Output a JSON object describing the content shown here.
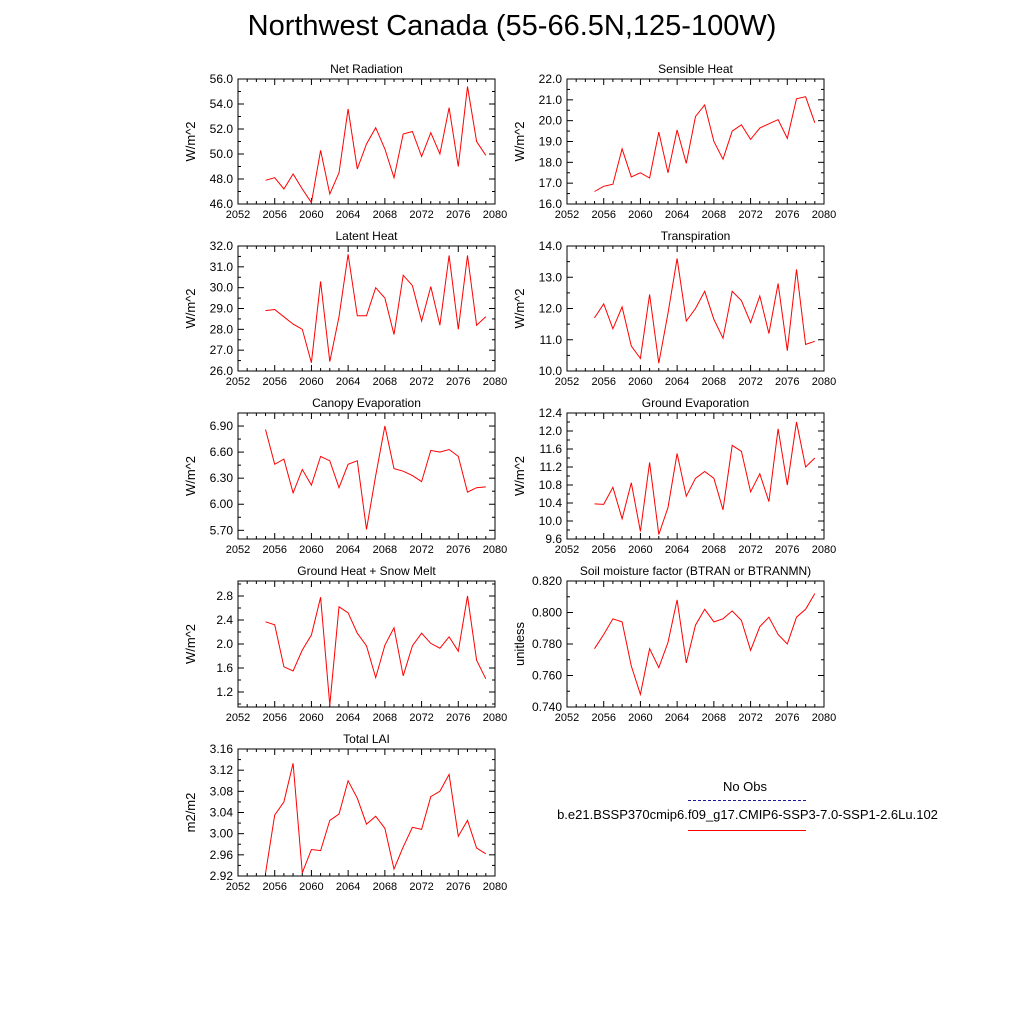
{
  "title": "Northwest Canada (55-66.5N,125-100W)",
  "legend": {
    "obs_label": "No Obs",
    "obs_color": "#1a1a99",
    "case_label": "b.e21.BSSP370cmip6.f09_g17.CMIP6-SSP3-7.0-SSP1-2.6Lu.102",
    "case_color": "#ff0000"
  },
  "chart_data": [
    {
      "type": "line",
      "title": "Net Radiation",
      "ylabel": "W/m^2",
      "xlim": [
        2052,
        2080
      ],
      "ylim": [
        46.0,
        56.0
      ],
      "xticks": [
        2052,
        2056,
        2060,
        2064,
        2068,
        2072,
        2076,
        2080
      ],
      "yticks": [
        46.0,
        48.0,
        50.0,
        52.0,
        54.0,
        56.0
      ],
      "ytick_labels": [
        "46.0",
        "48.0",
        "50.0",
        "52.0",
        "54.0",
        "56.0"
      ],
      "x": [
        2055,
        2056,
        2057,
        2058,
        2059,
        2060,
        2061,
        2062,
        2063,
        2064,
        2065,
        2066,
        2067,
        2068,
        2069,
        2070,
        2071,
        2072,
        2073,
        2074,
        2075,
        2076,
        2077,
        2078,
        2079
      ],
      "series": [
        {
          "values": [
            47.9,
            48.1,
            47.2,
            48.4,
            47.2,
            46.1,
            50.3,
            46.8,
            48.5,
            53.6,
            48.8,
            50.8,
            52.1,
            50.4,
            48.1,
            51.6,
            51.8,
            49.8,
            51.7,
            50.0,
            53.7,
            49.0,
            55.4,
            51.0,
            49.9
          ]
        }
      ]
    },
    {
      "type": "line",
      "title": "Sensible Heat",
      "ylabel": "W/m^2",
      "xlim": [
        2052,
        2080
      ],
      "ylim": [
        16.0,
        22.0
      ],
      "xticks": [
        2052,
        2056,
        2060,
        2064,
        2068,
        2072,
        2076,
        2080
      ],
      "yticks": [
        16.0,
        17.0,
        18.0,
        19.0,
        20.0,
        21.0,
        22.0
      ],
      "ytick_labels": [
        "16.0",
        "17.0",
        "18.0",
        "19.0",
        "20.0",
        "21.0",
        "22.0"
      ],
      "x": [
        2055,
        2056,
        2057,
        2058,
        2059,
        2060,
        2061,
        2062,
        2063,
        2064,
        2065,
        2066,
        2067,
        2068,
        2069,
        2070,
        2071,
        2072,
        2073,
        2074,
        2075,
        2076,
        2077,
        2078,
        2079
      ],
      "series": [
        {
          "values": [
            16.6,
            16.85,
            16.95,
            18.65,
            17.3,
            17.5,
            17.25,
            19.45,
            17.5,
            19.55,
            17.95,
            20.2,
            20.75,
            19.0,
            18.15,
            19.5,
            19.8,
            19.1,
            19.65,
            19.85,
            20.05,
            19.15,
            21.05,
            21.15,
            19.9
          ]
        }
      ]
    },
    {
      "type": "line",
      "title": "Latent Heat",
      "ylabel": "W/m^2",
      "xlim": [
        2052,
        2080
      ],
      "ylim": [
        26.0,
        32.0
      ],
      "xticks": [
        2052,
        2056,
        2060,
        2064,
        2068,
        2072,
        2076,
        2080
      ],
      "yticks": [
        26.0,
        27.0,
        28.0,
        29.0,
        30.0,
        31.0,
        32.0
      ],
      "ytick_labels": [
        "26.0",
        "27.0",
        "28.0",
        "29.0",
        "30.0",
        "31.0",
        "32.0"
      ],
      "x": [
        2055,
        2056,
        2057,
        2058,
        2059,
        2060,
        2061,
        2062,
        2063,
        2064,
        2065,
        2066,
        2067,
        2068,
        2069,
        2070,
        2071,
        2072,
        2073,
        2074,
        2075,
        2076,
        2077,
        2078,
        2079
      ],
      "series": [
        {
          "values": [
            28.9,
            28.95,
            28.6,
            28.25,
            28.0,
            26.4,
            30.3,
            26.45,
            28.6,
            31.6,
            28.65,
            28.65,
            30.0,
            29.5,
            27.75,
            30.6,
            30.1,
            28.4,
            30.05,
            28.2,
            31.55,
            28.0,
            31.55,
            28.2,
            28.6
          ]
        }
      ]
    },
    {
      "type": "line",
      "title": "Transpiration",
      "ylabel": "W/m^2",
      "xlim": [
        2052,
        2080
      ],
      "ylim": [
        10.0,
        14.0
      ],
      "xticks": [
        2052,
        2056,
        2060,
        2064,
        2068,
        2072,
        2076,
        2080
      ],
      "yticks": [
        10.0,
        11.0,
        12.0,
        13.0,
        14.0
      ],
      "ytick_labels": [
        "10.0",
        "11.0",
        "12.0",
        "13.0",
        "14.0"
      ],
      "x": [
        2055,
        2056,
        2057,
        2058,
        2059,
        2060,
        2061,
        2062,
        2063,
        2064,
        2065,
        2066,
        2067,
        2068,
        2069,
        2070,
        2071,
        2072,
        2073,
        2074,
        2075,
        2076,
        2077,
        2078,
        2079
      ],
      "series": [
        {
          "values": [
            11.7,
            12.15,
            11.35,
            12.05,
            10.8,
            10.4,
            12.45,
            10.25,
            11.85,
            13.6,
            11.6,
            12.0,
            12.55,
            11.65,
            11.05,
            12.55,
            12.25,
            11.55,
            12.4,
            11.2,
            12.8,
            10.65,
            13.25,
            10.85,
            10.95
          ]
        }
      ]
    },
    {
      "type": "line",
      "title": "Canopy Evaporation",
      "ylabel": "W/m^2",
      "xlim": [
        2052,
        2080
      ],
      "ylim": [
        5.6,
        7.05
      ],
      "xticks": [
        2052,
        2056,
        2060,
        2064,
        2068,
        2072,
        2076,
        2080
      ],
      "yticks": [
        5.7,
        6.0,
        6.3,
        6.6,
        6.9
      ],
      "ytick_labels": [
        "5.70",
        "6.00",
        "6.30",
        "6.60",
        "6.90"
      ],
      "x": [
        2055,
        2056,
        2057,
        2058,
        2059,
        2060,
        2061,
        2062,
        2063,
        2064,
        2065,
        2066,
        2067,
        2068,
        2069,
        2070,
        2071,
        2072,
        2073,
        2074,
        2075,
        2076,
        2077,
        2078,
        2079
      ],
      "series": [
        {
          "values": [
            6.86,
            6.46,
            6.52,
            6.13,
            6.4,
            6.22,
            6.55,
            6.5,
            6.19,
            6.46,
            6.5,
            5.71,
            6.33,
            6.9,
            6.41,
            6.38,
            6.33,
            6.26,
            6.62,
            6.6,
            6.63,
            6.55,
            6.14,
            6.19,
            6.2
          ]
        }
      ]
    },
    {
      "type": "line",
      "title": "Ground Evaporation",
      "ylabel": "W/m^2",
      "xlim": [
        2052,
        2080
      ],
      "ylim": [
        9.6,
        12.4
      ],
      "xticks": [
        2052,
        2056,
        2060,
        2064,
        2068,
        2072,
        2076,
        2080
      ],
      "yticks": [
        9.6,
        10.0,
        10.4,
        10.8,
        11.2,
        11.6,
        12.0,
        12.4
      ],
      "ytick_labels": [
        "9.6",
        "10.0",
        "10.4",
        "10.8",
        "11.2",
        "11.6",
        "12.0",
        "12.4"
      ],
      "x": [
        2055,
        2056,
        2057,
        2058,
        2059,
        2060,
        2061,
        2062,
        2063,
        2064,
        2065,
        2066,
        2067,
        2068,
        2069,
        2070,
        2071,
        2072,
        2073,
        2074,
        2075,
        2076,
        2077,
        2078,
        2079
      ],
      "series": [
        {
          "values": [
            10.38,
            10.37,
            10.75,
            10.05,
            10.85,
            9.77,
            11.3,
            9.7,
            10.3,
            11.5,
            10.55,
            10.95,
            11.1,
            10.95,
            10.25,
            11.68,
            11.55,
            10.65,
            11.05,
            10.43,
            12.05,
            10.8,
            12.2,
            11.2,
            11.4
          ]
        }
      ]
    },
    {
      "type": "line",
      "title": "Ground Heat + Snow Melt",
      "ylabel": "W/m^2",
      "xlim": [
        2052,
        2080
      ],
      "ylim": [
        0.95,
        3.05
      ],
      "xticks": [
        2052,
        2056,
        2060,
        2064,
        2068,
        2072,
        2076,
        2080
      ],
      "yticks": [
        1.2,
        1.6,
        2.0,
        2.4,
        2.8
      ],
      "ytick_labels": [
        "1.2",
        "1.6",
        "2.0",
        "2.4",
        "2.8"
      ],
      "x": [
        2055,
        2056,
        2057,
        2058,
        2059,
        2060,
        2061,
        2062,
        2063,
        2064,
        2065,
        2066,
        2067,
        2068,
        2069,
        2070,
        2071,
        2072,
        2073,
        2074,
        2075,
        2076,
        2077,
        2078,
        2079
      ],
      "series": [
        {
          "values": [
            2.37,
            2.32,
            1.62,
            1.55,
            1.9,
            2.15,
            2.78,
            0.98,
            2.62,
            2.52,
            2.18,
            1.97,
            1.44,
            1.98,
            2.27,
            1.47,
            1.97,
            2.18,
            2.01,
            1.93,
            2.12,
            1.88,
            2.8,
            1.73,
            1.42
          ]
        }
      ]
    },
    {
      "type": "line",
      "title": "Soil moisture factor (BTRAN or BTRANMN)",
      "ylabel": "unitless",
      "xlim": [
        2052,
        2080
      ],
      "ylim": [
        0.74,
        0.82
      ],
      "xticks": [
        2052,
        2056,
        2060,
        2064,
        2068,
        2072,
        2076,
        2080
      ],
      "yticks": [
        0.74,
        0.76,
        0.78,
        0.8,
        0.82
      ],
      "ytick_labels": [
        "0.740",
        "0.760",
        "0.780",
        "0.800",
        "0.820"
      ],
      "x": [
        2055,
        2056,
        2057,
        2058,
        2059,
        2060,
        2061,
        2062,
        2063,
        2064,
        2065,
        2066,
        2067,
        2068,
        2069,
        2070,
        2071,
        2072,
        2073,
        2074,
        2075,
        2076,
        2077,
        2078,
        2079
      ],
      "series": [
        {
          "values": [
            0.777,
            0.786,
            0.796,
            0.794,
            0.766,
            0.748,
            0.777,
            0.765,
            0.781,
            0.808,
            0.768,
            0.792,
            0.802,
            0.794,
            0.796,
            0.801,
            0.795,
            0.776,
            0.791,
            0.797,
            0.786,
            0.78,
            0.797,
            0.802,
            0.812
          ]
        }
      ]
    },
    {
      "type": "line",
      "title": "Total LAI",
      "ylabel": "m2/m2",
      "xlim": [
        2052,
        2080
      ],
      "ylim": [
        2.92,
        3.16
      ],
      "xticks": [
        2052,
        2056,
        2060,
        2064,
        2068,
        2072,
        2076,
        2080
      ],
      "yticks": [
        2.92,
        2.96,
        3.0,
        3.04,
        3.08,
        3.12,
        3.16
      ],
      "ytick_labels": [
        "2.92",
        "2.96",
        "3.00",
        "3.04",
        "3.08",
        "3.12",
        "3.16"
      ],
      "x": [
        2055,
        2056,
        2057,
        2058,
        2059,
        2060,
        2061,
        2062,
        2063,
        2064,
        2065,
        2066,
        2067,
        2068,
        2069,
        2070,
        2071,
        2072,
        2073,
        2074,
        2075,
        2076,
        2077,
        2078,
        2079
      ],
      "series": [
        {
          "values": [
            2.925,
            3.035,
            3.06,
            3.133,
            2.926,
            2.97,
            2.968,
            3.025,
            3.037,
            3.1,
            3.067,
            3.018,
            3.033,
            3.01,
            2.933,
            2.975,
            3.012,
            3.008,
            3.07,
            3.08,
            3.112,
            2.995,
            3.025,
            2.973,
            2.962
          ]
        }
      ]
    }
  ]
}
